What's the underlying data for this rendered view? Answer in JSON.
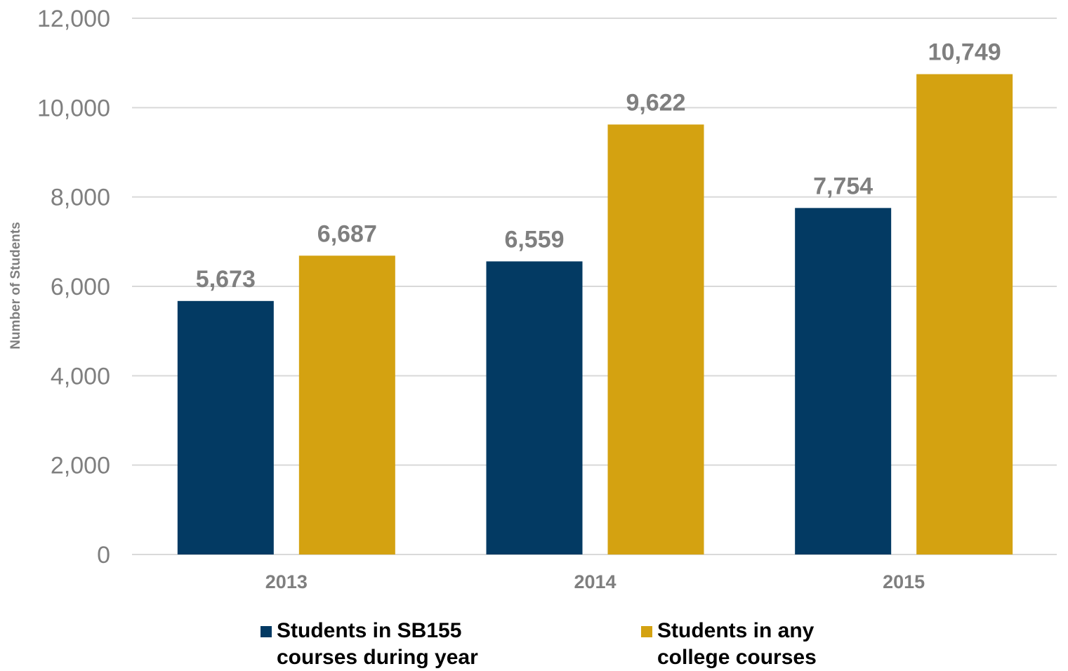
{
  "chart_data": {
    "type": "bar",
    "categories": [
      "2013",
      "2014",
      "2015"
    ],
    "series": [
      {
        "name": "Students in SB155\ncourses during year",
        "values": [
          5673,
          6559,
          7754
        ],
        "color": "#033a63"
      },
      {
        "name": "Students in any\ncollege courses",
        "values": [
          6687,
          9622,
          10749
        ],
        "color": "#d4a211"
      }
    ],
    "data_labels": [
      [
        "5,673",
        "6,559",
        "7,754"
      ],
      [
        "6,687",
        "9,622",
        "10,749"
      ]
    ],
    "yticks": [
      "0",
      "2,000",
      "4,000",
      "6,000",
      "8,000",
      "10,000",
      "12,000"
    ],
    "ylabel": "Number of Students",
    "xlabel": "",
    "title": "",
    "ylim": [
      0,
      12000
    ],
    "grid": true,
    "legend_position": "bottom"
  }
}
